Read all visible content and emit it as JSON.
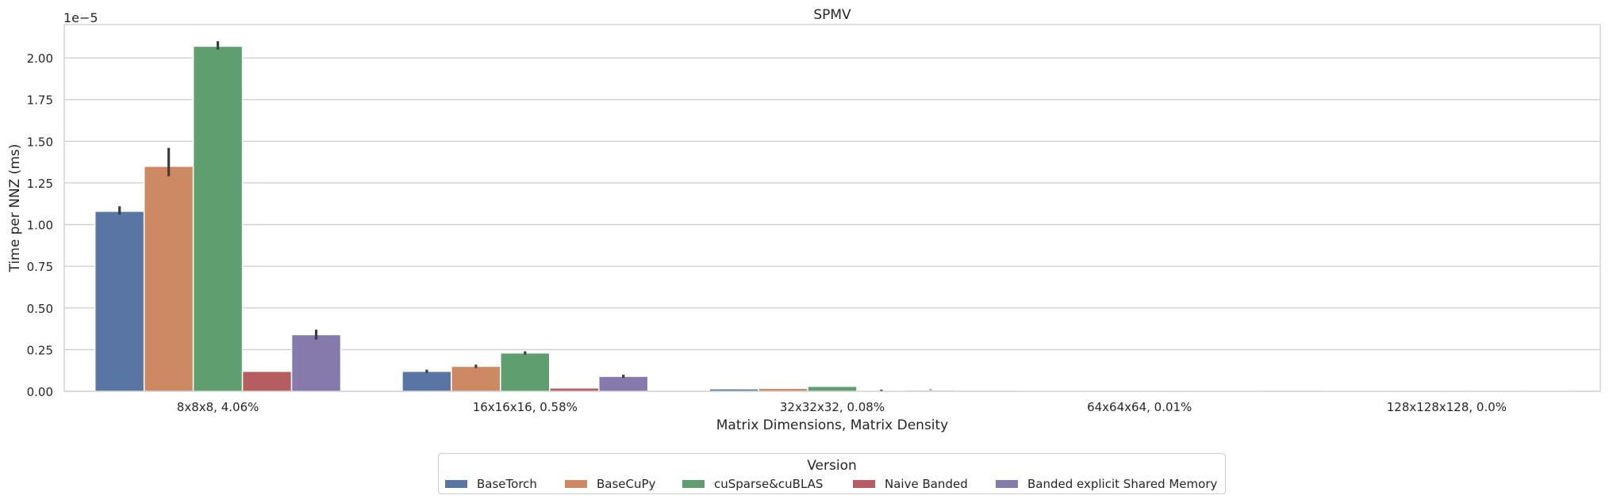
{
  "chart_data": {
    "type": "bar",
    "title": "SPMV",
    "xlabel": "Matrix Dimensions, Matrix Density",
    "ylabel": "Time per NNZ (ms)",
    "y_offset_label": "1e−5",
    "y_scale": 1e-05,
    "ylim": [
      0,
      2.2
    ],
    "yticks": [
      "0.00",
      "0.25",
      "0.50",
      "0.75",
      "1.00",
      "1.25",
      "1.50",
      "1.75",
      "2.00"
    ],
    "grid": true,
    "legend_placement": "bottom-center, below plot",
    "legend_title": "Version",
    "categories": [
      "8x8x8, 4.06%",
      "16x16x16, 0.58%",
      "32x32x32, 0.08%",
      "64x64x64, 0.01%",
      "128x128x128, 0.0%"
    ],
    "series": [
      {
        "name": "BaseTorch",
        "color": "#5875a4",
        "values": [
          1.08,
          0.12,
          0.015,
          0.002,
          0.0003
        ],
        "err_low": [
          1.06,
          0.11,
          null,
          null,
          null
        ],
        "err_high": [
          1.11,
          0.13,
          null,
          null,
          null
        ]
      },
      {
        "name": "BaseCuPy",
        "color": "#cc8963",
        "values": [
          1.35,
          0.15,
          0.018,
          0.002,
          0.0003
        ],
        "err_low": [
          1.29,
          0.14,
          null,
          null,
          null
        ],
        "err_high": [
          1.46,
          0.16,
          null,
          null,
          null
        ]
      },
      {
        "name": "cuSparse&cuBLAS",
        "color": "#5f9e6e",
        "values": [
          2.07,
          0.23,
          0.03,
          0.004,
          0.0005
        ],
        "err_low": [
          2.05,
          0.22,
          null,
          null,
          null
        ],
        "err_high": [
          2.1,
          0.24,
          null,
          null,
          null
        ]
      },
      {
        "name": "Naive Banded",
        "color": "#b55d60",
        "values": [
          0.12,
          0.02,
          0.002,
          0.0003,
          5e-05
        ],
        "err_low": [
          null,
          null,
          null,
          null,
          null
        ],
        "err_high": [
          null,
          null,
          0.01,
          null,
          null
        ]
      },
      {
        "name": "Banded explicit Shared Memory",
        "color": "#857aab",
        "values": [
          0.34,
          0.09,
          0.008,
          0.001,
          0.0002
        ],
        "err_low": [
          0.31,
          0.08,
          null,
          null,
          null
        ],
        "err_high": [
          0.37,
          0.1,
          0.012,
          null,
          null
        ]
      }
    ]
  }
}
